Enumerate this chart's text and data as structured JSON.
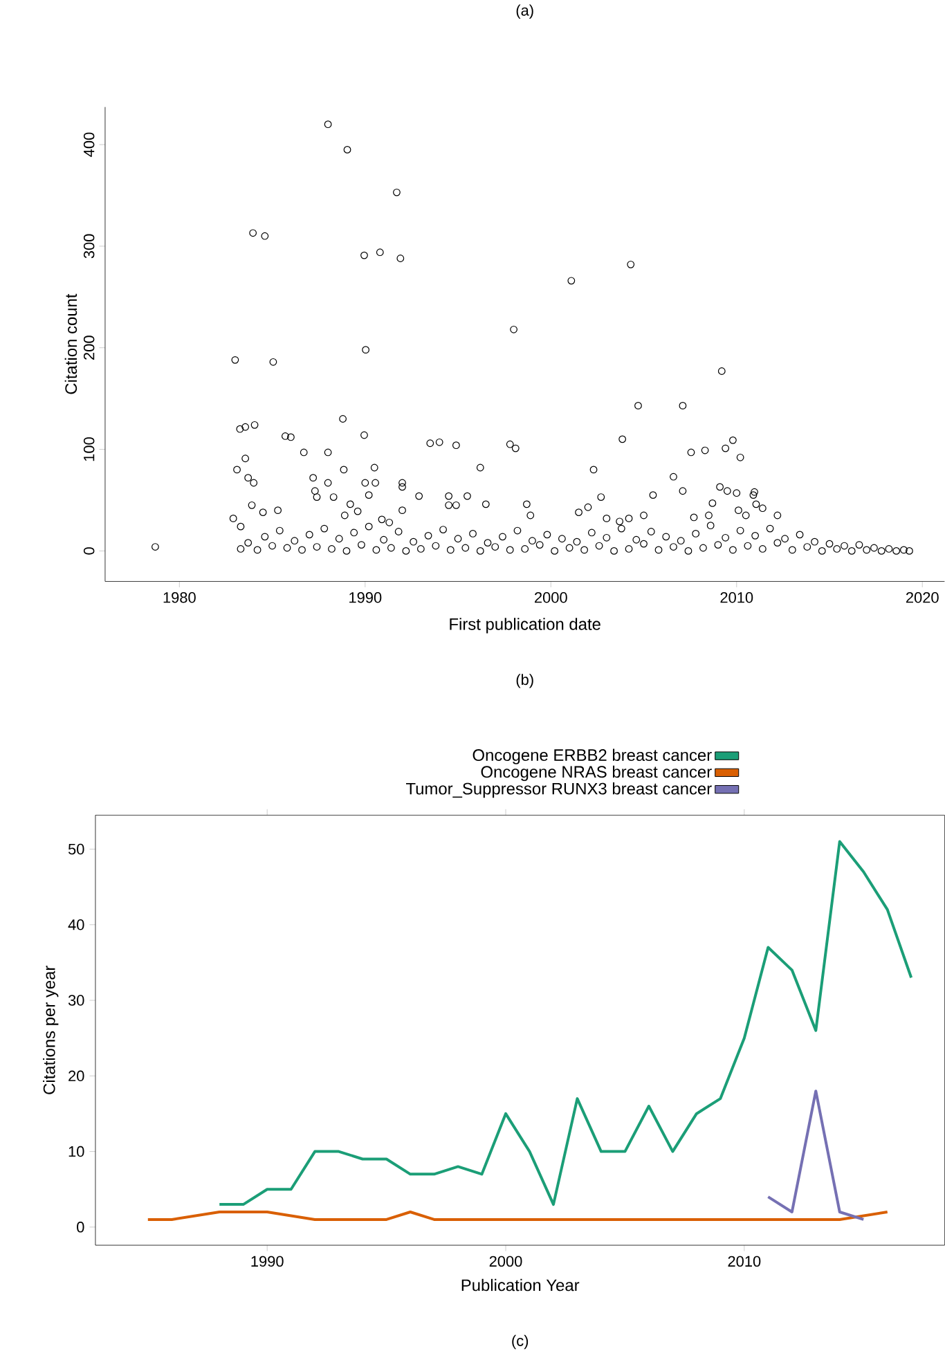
{
  "chart_data": [
    {
      "type": "scatter",
      "title": "(a)",
      "xlabel": "First publication date",
      "ylabel": "Citation count",
      "annotations": [
        "(b)"
      ],
      "marker": "circle",
      "color": "#000000",
      "grid": false,
      "legend": false,
      "xlim": [
        1976,
        2021.2
      ],
      "ylim": [
        -30,
        437
      ],
      "xticks": [
        1980,
        1990,
        2000,
        2010,
        2020
      ],
      "yticks": [
        0,
        100,
        200,
        300,
        400
      ],
      "x": [
        1978.7,
        1988.0,
        1989.04,
        1991.7,
        1983.96,
        1984.6,
        1989.95,
        1990.8,
        1991.9,
        2001.1,
        2004.3,
        1998.0,
        1990.03,
        1983.0,
        1985.05,
        2009.2,
        2004.7,
        2007.1,
        1988.8,
        1983.26,
        1983.55,
        1984.05,
        1985.7,
        1986.0,
        1989.95,
        2003.85,
        2009.8,
        1993.5,
        1994.0,
        1994.9,
        1997.8,
        1998.1,
        1986.7,
        1988.0,
        2007.55,
        2008.3,
        2009.4,
        2010.2,
        1983.55,
        1983.1,
        1983.7,
        1984.0,
        1988.85,
        1990.5,
        1996.2,
        2002.3,
        1987.2,
        1988.0,
        1987.3,
        1987.4,
        1988.3,
        1990.0,
        1990.55,
        1990.2,
        1992.0,
        1992.0,
        2006.6,
        2007.1,
        2009.1,
        2009.5,
        2010.0,
        2010.96,
        2010.9,
        2005.5,
        1992.9,
        1994.5,
        1995.5,
        2002.7,
        1982.9,
        1983.3,
        1983.9,
        1984.5,
        1985.3,
        1988.9,
        1989.2,
        1989.6,
        1990.9,
        1991.3,
        1992.0,
        1994.5,
        1994.9,
        1996.5,
        1998.7,
        1998.9,
        2001.5,
        2002.0,
        2003.0,
        2003.7,
        2004.2,
        2005.0,
        2007.7,
        2008.5,
        2008.7,
        2010.1,
        2010.5,
        2011.05,
        2011.4,
        2012.2,
        1983.3,
        1983.7,
        1984.2,
        1984.6,
        1985.0,
        1985.4,
        1985.8,
        1986.2,
        1986.6,
        1987.0,
        1987.4,
        1987.8,
        1988.2,
        1988.6,
        1989.0,
        1989.4,
        1989.8,
        1990.2,
        1990.6,
        1991.0,
        1991.4,
        1991.8,
        1992.2,
        1992.6,
        1993.0,
        1993.4,
        1993.8,
        1994.2,
        1994.6,
        1995.0,
        1995.4,
        1995.8,
        1996.2,
        1996.6,
        1997.0,
        1997.4,
        1997.8,
        1998.2,
        1998.6,
        1999.0,
        1999.4,
        1999.8,
        2000.2,
        2000.6,
        2001.0,
        2001.4,
        2001.8,
        2002.2,
        2002.6,
        2003.0,
        2003.4,
        2003.8,
        2004.2,
        2004.6,
        2005.0,
        2005.4,
        2005.8,
        2006.2,
        2006.6,
        2007.0,
        2007.4,
        2007.8,
        2008.2,
        2008.6,
        2009.0,
        2009.4,
        2009.8,
        2010.2,
        2010.6,
        2011.0,
        2011.4,
        2011.8,
        2012.2,
        2012.6,
        2013.0,
        2013.4,
        2013.8,
        2014.2,
        2014.6,
        2015.0,
        2015.4,
        2015.8,
        2016.2,
        2016.6,
        2017.0,
        2017.4,
        2017.8,
        2018.2,
        2018.6,
        2019.0,
        2019.3
      ],
      "values": [
        4,
        420,
        395,
        353,
        313,
        310,
        291,
        294,
        288,
        266,
        282,
        218,
        198,
        188,
        186,
        177,
        143,
        143,
        130,
        120,
        122,
        124,
        113,
        112,
        114,
        110,
        109,
        106,
        107,
        104,
        105,
        101,
        97,
        97,
        97,
        99,
        101,
        92,
        91,
        80,
        72,
        67,
        80,
        82,
        82,
        80,
        72,
        67,
        59,
        53,
        53,
        67,
        67,
        55,
        67,
        63,
        73,
        59,
        63,
        59,
        57,
        58,
        55,
        55,
        54,
        54,
        54,
        53,
        32,
        24,
        45,
        38,
        40,
        35,
        46,
        39,
        31,
        28,
        40,
        45,
        45,
        46,
        46,
        35,
        38,
        43,
        32,
        29,
        32,
        35,
        33,
        35,
        47,
        40,
        35,
        46,
        42,
        35,
        2,
        8,
        1,
        14,
        5,
        20,
        3,
        10,
        1,
        16,
        4,
        22,
        2,
        12,
        0,
        18,
        6,
        24,
        1,
        11,
        3,
        19,
        0,
        9,
        2,
        15,
        5,
        21,
        1,
        12,
        3,
        17,
        0,
        8,
        4,
        14,
        1,
        20,
        2,
        10,
        6,
        16,
        0,
        12,
        3,
        9,
        1,
        18,
        5,
        13,
        0,
        22,
        2,
        11,
        7,
        19,
        1,
        14,
        4,
        10,
        0,
        17,
        3,
        25,
        6,
        13,
        1,
        20,
        5,
        15,
        2,
        22,
        8,
        12,
        1,
        16,
        4,
        9,
        0,
        7,
        2,
        5,
        0,
        6,
        1,
        3,
        0,
        2,
        0,
        1,
        0
      ]
    },
    {
      "type": "line",
      "xlabel": "Publication Year",
      "ylabel": "Citations per year",
      "annotations": [
        "(c)"
      ],
      "grid": false,
      "legend": "top",
      "marker": "none",
      "line_style": "solid",
      "xlim": [
        1982.8,
        2018.4
      ],
      "ylim": [
        -2.4,
        54.5
      ],
      "xticks": [
        1990,
        2000,
        2010
      ],
      "yticks": [
        0,
        10,
        20,
        30,
        40,
        50
      ],
      "series": [
        {
          "name": "Oncogene ERBB2 breast cancer",
          "color": "#1b9e77",
          "x": [
            1988,
            1989,
            1990,
            1991,
            1992,
            1993,
            1994,
            1995,
            1996,
            1997,
            1998,
            1999,
            2000,
            2001,
            2002,
            2003,
            2004,
            2005,
            2006,
            2007,
            2008,
            2009,
            2010,
            2011,
            2012,
            2013,
            2014,
            2015,
            2016,
            2017
          ],
          "values": [
            3,
            3,
            5,
            5,
            10,
            10,
            9,
            9,
            7,
            7,
            8,
            7,
            15,
            10,
            3,
            17,
            10,
            10,
            16,
            10,
            15,
            17,
            25,
            37,
            34,
            26,
            51,
            47,
            42,
            33
          ]
        },
        {
          "name": "Oncogene NRAS breast cancer",
          "color": "#d95f02",
          "x": [
            1985,
            1986,
            1988,
            1990,
            1992,
            1995,
            1996,
            1997,
            2014,
            2016
          ],
          "values": [
            1,
            1,
            2,
            2,
            1,
            1,
            2,
            1,
            1,
            2
          ]
        },
        {
          "name": "Tumor_Suppressor RUNX3 breast cancer",
          "color": "#7570b3",
          "x": [
            2011,
            2012,
            2013,
            2014,
            2015
          ],
          "values": [
            4,
            2,
            18,
            2,
            1
          ]
        }
      ]
    }
  ]
}
